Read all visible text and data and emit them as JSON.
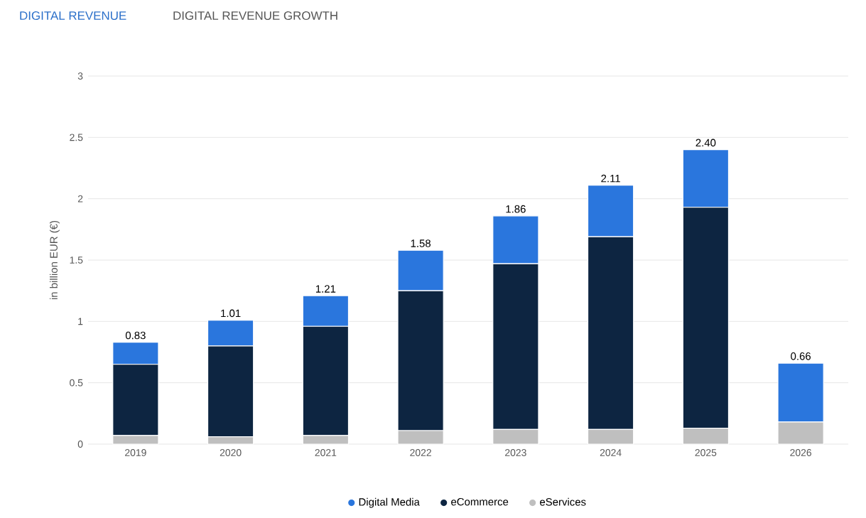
{
  "chart_data": {
    "type": "bar",
    "title": "DIGITAL REVENUE",
    "annotations": [
      "DIGITAL REVENUE GROWTH"
    ],
    "ylabel": "in billion EUR (€)",
    "categories": [
      "2019",
      "2020",
      "2021",
      "2022",
      "2023",
      "2024",
      "2025",
      "2026"
    ],
    "stacked": true,
    "series": [
      {
        "name": "eServices",
        "color": "#bfbfbf",
        "values": [
          0.07,
          0.06,
          0.07,
          0.11,
          0.12,
          0.12,
          0.13,
          0.18
        ]
      },
      {
        "name": "eCommerce",
        "color": "#0d2541",
        "values": [
          0.58,
          0.74,
          0.89,
          1.14,
          1.35,
          1.57,
          1.8,
          0
        ]
      },
      {
        "name": "Digital Media",
        "color": "#2a76dd",
        "values": [
          0.18,
          0.21,
          0.25,
          0.33,
          0.39,
          0.42,
          0.47,
          0.48
        ]
      }
    ],
    "totals": [
      "0.83",
      "1.01",
      "1.21",
      "1.58",
      "1.86",
      "2.11",
      "2.40",
      "0.66"
    ],
    "ylim": [
      0,
      3
    ],
    "yticks": [
      0,
      0.5,
      1,
      1.5,
      2,
      2.5,
      3
    ],
    "grid": "y",
    "legend": "bottom"
  }
}
